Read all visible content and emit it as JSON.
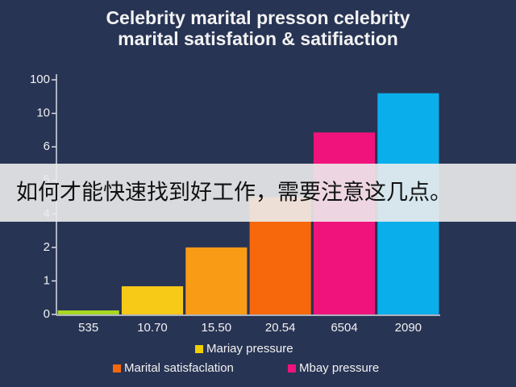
{
  "chart_data": {
    "type": "bar",
    "title": [
      "Celebrity marital presson celebrity",
      "marital satisfation & satifiaction"
    ],
    "categories": [
      "535",
      "10.70",
      "15.50",
      "20.54",
      "6504",
      "2090"
    ],
    "values": [
      0.12,
      0.84,
      2.0,
      3.5,
      5.43,
      6.6
    ],
    "colors": [
      "#a8d822",
      "#f8ca18",
      "#fa9b16",
      "#f6680b",
      "#f0137c",
      "#0aaeea"
    ],
    "ylim": [
      0,
      7
    ],
    "yticks": [
      {
        "value": 0,
        "label": "0"
      },
      {
        "value": 1,
        "label": "1"
      },
      {
        "value": 2,
        "label": "2"
      },
      {
        "value": 3,
        "label": "4"
      },
      {
        "value": 4,
        "label": "5"
      },
      {
        "value": 5,
        "label": "6"
      },
      {
        "value": 6,
        "label": "10"
      },
      {
        "value": 7,
        "label": "100"
      }
    ],
    "legend": [
      {
        "name": "Mariay pressure",
        "color": "#f0d000"
      },
      {
        "name": "Marital satisfaclation",
        "color": "#f6680b"
      },
      {
        "name": "Mbay pressure",
        "color": "#f0137c"
      }
    ]
  },
  "overlay": {
    "text": "如何才能快速找到好工作，需要注意这几点。"
  }
}
